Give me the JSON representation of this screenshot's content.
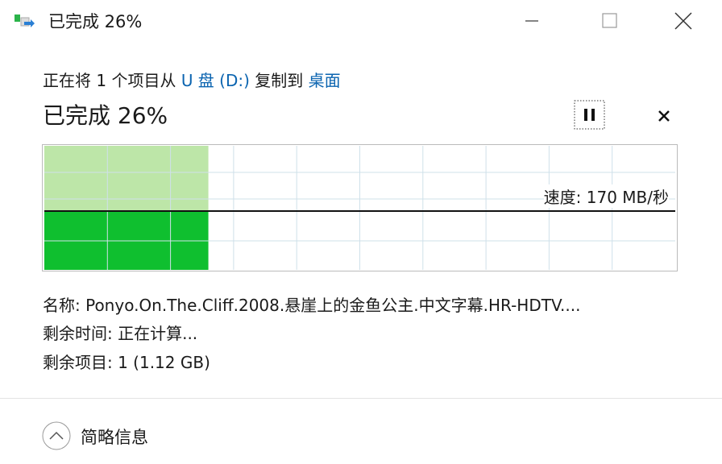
{
  "titlebar": {
    "title": "已完成 26%"
  },
  "description": {
    "parts": [
      "正在将 1 个项目从",
      "U 盘 (D:)",
      "复制到",
      "桌面"
    ]
  },
  "status": {
    "heading": "已完成 26%",
    "progress": 26,
    "speed": "速度: 170 MB/秒"
  },
  "details": {
    "name": "名称: Ponyo.On.The.Cliff.2008.悬崖上的金鱼公主.中文字幕.HR-HDTV....",
    "time_remaining": "剩余时间: 正在计算...",
    "items_remaining": "剩余项目: 1 (1.12 GB)"
  },
  "footer": {
    "toggle": "简略信息"
  }
}
